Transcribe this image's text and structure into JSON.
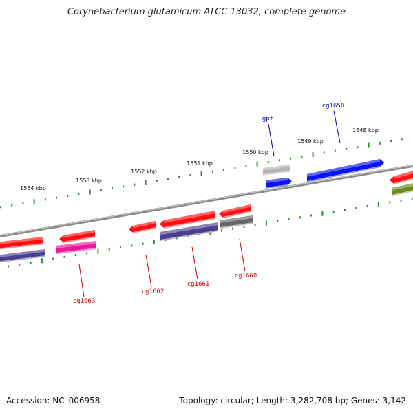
{
  "title": "Corynebacterium glutamicum ATCC 13032, complete genome",
  "footer": {
    "accession": "Accession: NC_006958",
    "summary": "Topology: circular; Length: 3,282,708 bp; Genes: 3,142"
  },
  "ruler": {
    "labels": [
      "1554 kbp",
      "1553 kbp",
      "1552 kbp",
      "1551 kbp",
      "1550 kbp",
      "1549 kbp",
      "1548 kbp"
    ]
  },
  "colors": {
    "backbone": "#8a8a8a",
    "tick": "#2e8b2e",
    "label_red": "#cc0000",
    "label_blue": "#0000aa",
    "red": "#ff1010",
    "blue": "#0a14ee",
    "purple": "#4a3f8c",
    "magenta": "#e8199a",
    "gray": "#666666",
    "lightgray": "#b4b4b4",
    "olive": "#6a8c1e"
  },
  "gene_labels": [
    {
      "text": "gpt",
      "color": "blue"
    },
    {
      "text": "cg1658",
      "color": "blue"
    },
    {
      "text": "cg1660",
      "color": "red"
    },
    {
      "text": "cg1661",
      "color": "red"
    },
    {
      "text": "cg1662",
      "color": "red"
    },
    {
      "text": "cg1663",
      "color": "red"
    }
  ]
}
